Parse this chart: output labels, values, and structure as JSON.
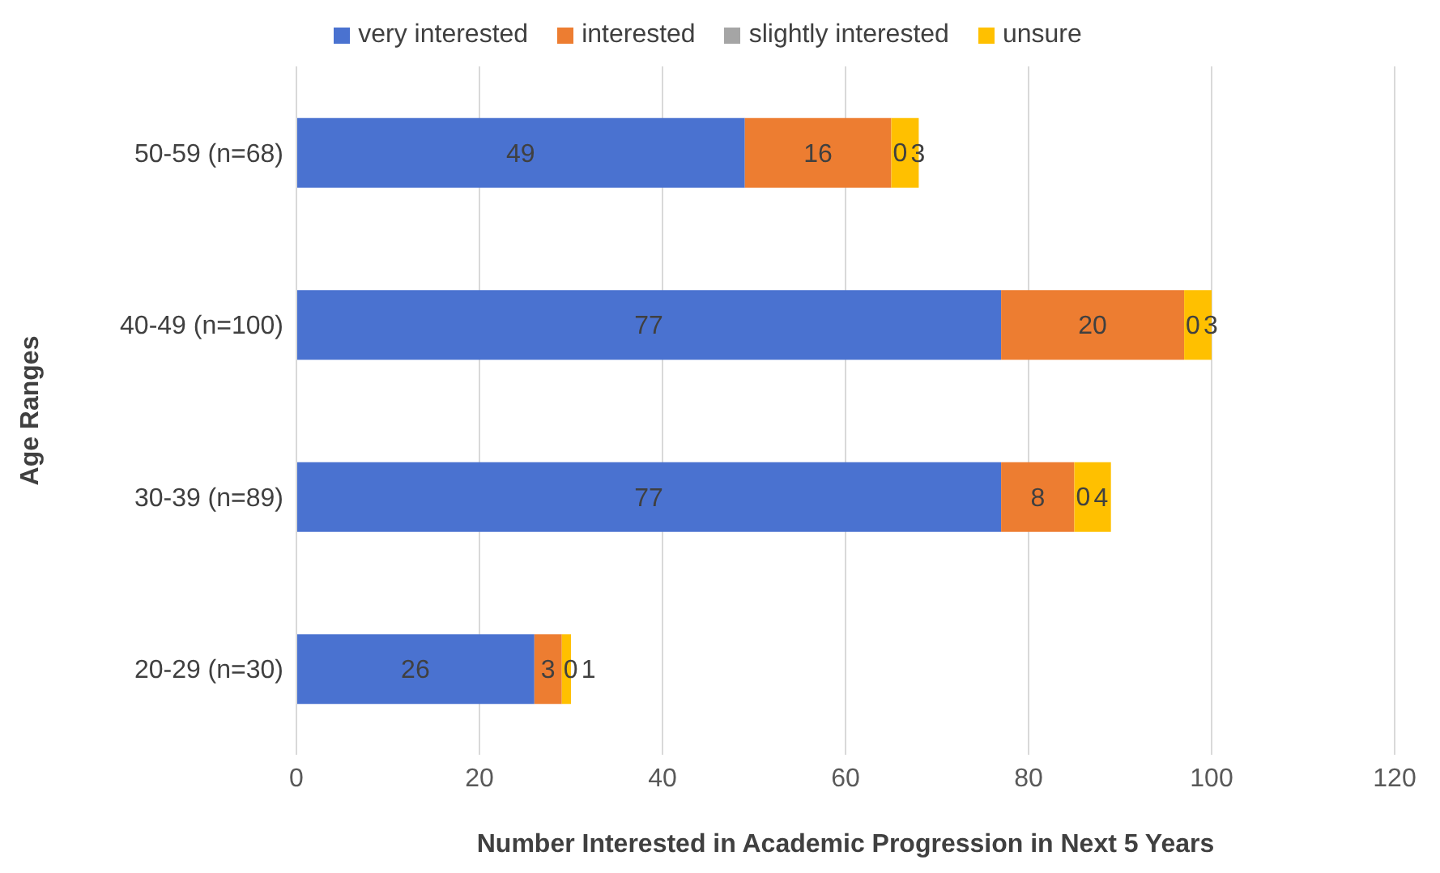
{
  "chart_data": {
    "type": "bar",
    "orientation": "horizontal",
    "stacked": true,
    "xlabel": "Number Interested in Academic Progression in Next 5 Years",
    "ylabel": "Age Ranges",
    "categories": [
      "50-59 (n=68)",
      "40-49 (n=100)",
      "30-39 (n=89)",
      "20-29 (n=30)"
    ],
    "series": [
      {
        "name": "very interested",
        "color": "#4a72d0",
        "values": [
          49,
          77,
          77,
          26
        ]
      },
      {
        "name": "interested",
        "color": "#ed7d31",
        "values": [
          16,
          20,
          8,
          3
        ]
      },
      {
        "name": "slightly interested",
        "color": "#a5a5a5",
        "values": [
          0,
          0,
          0,
          0
        ]
      },
      {
        "name": "unsure",
        "color": "#ffc000",
        "values": [
          3,
          3,
          4,
          1
        ]
      }
    ],
    "xlim": [
      0,
      120
    ],
    "xticks": [
      0,
      20,
      40,
      60,
      80,
      100,
      120
    ],
    "grid": "x",
    "legend": "top",
    "data_labels": true
  }
}
